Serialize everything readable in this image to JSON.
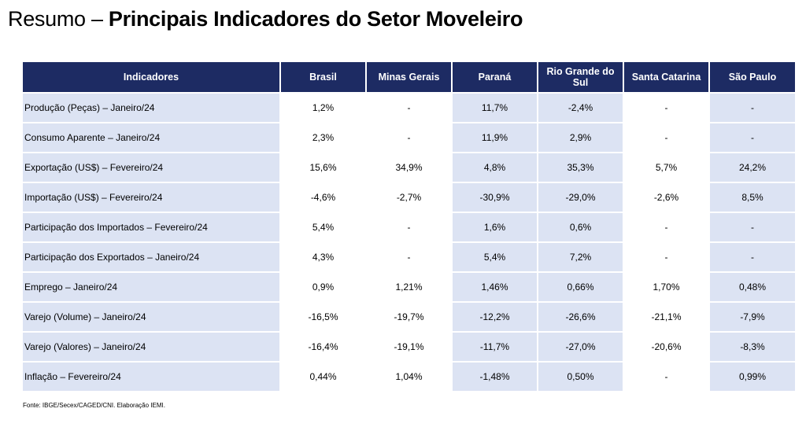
{
  "title": {
    "prefix": "Resumo – ",
    "main": "Principais Indicadores do Setor Moveleiro"
  },
  "table": {
    "headers": [
      "Indicadores",
      "Brasil",
      "Minas Gerais",
      "Paraná",
      "Rio Grande do Sul",
      "Santa Catarina",
      "São Paulo"
    ],
    "rows": [
      [
        "Produção (Peças) – Janeiro/24",
        "1,2%",
        "-",
        "11,7%",
        "-2,4%",
        "-",
        "-"
      ],
      [
        "Consumo Aparente – Janeiro/24",
        "2,3%",
        "-",
        "11,9%",
        "2,9%",
        "-",
        "-"
      ],
      [
        "Exportação (US$) – Fevereiro/24",
        "15,6%",
        "34,9%",
        "4,8%",
        "35,3%",
        "5,7%",
        "24,2%"
      ],
      [
        "Importação (US$) – Fevereiro/24",
        "-4,6%",
        "-2,7%",
        "-30,9%",
        "-29,0%",
        "-2,6%",
        "8,5%"
      ],
      [
        "Participação dos Importados – Fevereiro/24",
        "5,4%",
        "-",
        "1,6%",
        "0,6%",
        "-",
        "-"
      ],
      [
        "Participação dos Exportados – Janeiro/24",
        "4,3%",
        "-",
        "5,4%",
        "7,2%",
        "-",
        "-"
      ],
      [
        "Emprego – Janeiro/24",
        "0,9%",
        "1,21%",
        "1,46%",
        "0,66%",
        "1,70%",
        "0,48%"
      ],
      [
        "Varejo (Volume) – Janeiro/24",
        "-16,5%",
        "-19,7%",
        "-12,2%",
        "-26,6%",
        "-21,1%",
        "-7,9%"
      ],
      [
        "Varejo (Valores) – Janeiro/24",
        "-16,4%",
        "-19,1%",
        "-11,7%",
        "-27,0%",
        "-20,6%",
        "-8,3%"
      ],
      [
        "Inflação  – Fevereiro/24",
        "0,44%",
        "1,04%",
        "-1,48%",
        "0,50%",
        "-",
        "0,99%"
      ]
    ]
  },
  "source": "Fonte: IBGE/Secex/CAGED/CNI. Elaboração IEMI."
}
